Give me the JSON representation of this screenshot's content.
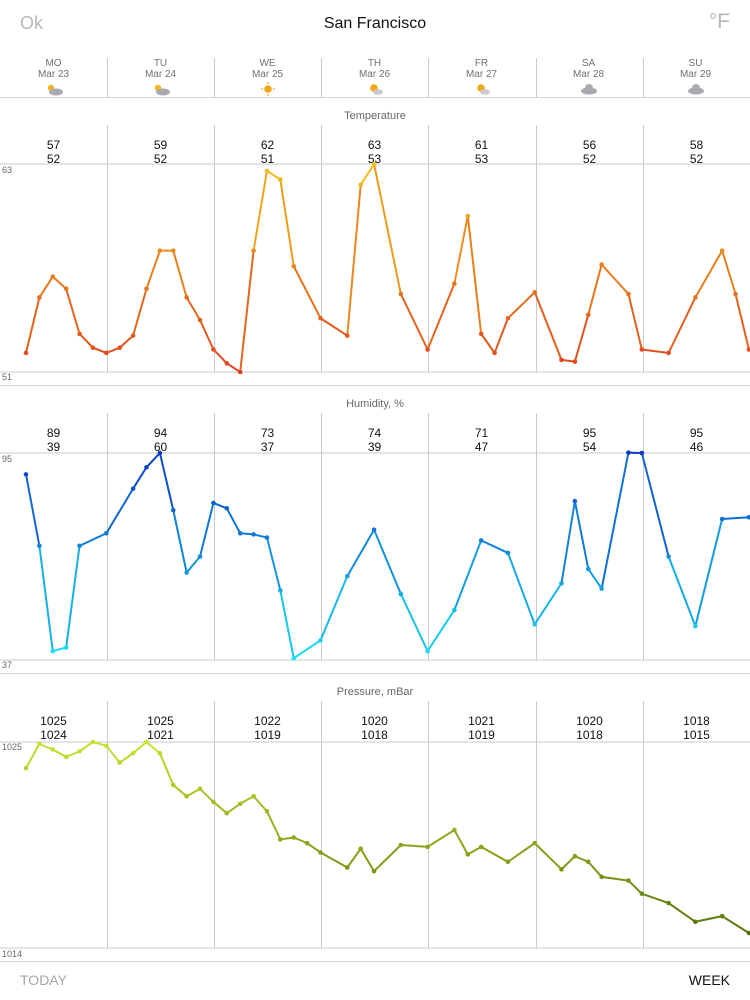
{
  "header": {
    "ok_label": "Ok",
    "city": "San Francisco",
    "unit_label": "°F"
  },
  "days": [
    {
      "name": "MO",
      "date": "Mar 23",
      "icon": "cloud-sun-icon"
    },
    {
      "name": "TU",
      "date": "Mar 24",
      "icon": "cloud-sun-icon"
    },
    {
      "name": "WE",
      "date": "Mar 25",
      "icon": "sun-icon"
    },
    {
      "name": "TH",
      "date": "Mar 26",
      "icon": "sun-cloud-icon"
    },
    {
      "name": "FR",
      "date": "Mar 27",
      "icon": "sun-cloud-icon"
    },
    {
      "name": "SA",
      "date": "Mar 28",
      "icon": "cloud-icon"
    },
    {
      "name": "SU",
      "date": "Mar 29",
      "icon": "cloud-icon"
    }
  ],
  "footer": {
    "today_label": "TODAY",
    "week_label": "WEEK"
  },
  "chart_data": [
    {
      "type": "line",
      "title": "Temperature",
      "ylim": [
        51,
        63
      ],
      "y_max_label": "63",
      "y_min_label": "51",
      "daily": [
        {
          "max": "57",
          "min": "52"
        },
        {
          "max": "59",
          "min": "52"
        },
        {
          "max": "62",
          "min": "51"
        },
        {
          "max": "63",
          "min": "53"
        },
        {
          "max": "61",
          "min": "53"
        },
        {
          "max": "56",
          "min": "52"
        },
        {
          "max": "58",
          "min": "52"
        }
      ],
      "x": [
        0,
        0.125,
        0.25,
        0.375,
        0.5,
        0.625,
        0.75,
        0.875,
        1,
        1.125,
        1.25,
        1.375,
        1.5,
        1.625,
        1.75,
        1.875,
        2,
        2.125,
        2.25,
        2.375,
        2.5,
        2.75,
        3,
        3.125,
        3.25,
        3.5,
        3.75,
        4,
        4.125,
        4.25,
        4.375,
        4.5,
        4.75,
        5,
        5.125,
        5.25,
        5.375,
        5.625,
        5.75,
        6,
        6.25,
        6.5,
        6.625,
        6.75,
        6.875,
        7
      ],
      "values": [
        52.1,
        55.3,
        56.5,
        55.8,
        53.2,
        52.4,
        52.1,
        52.4,
        53.1,
        55.8,
        58,
        58,
        55.3,
        54,
        52.3,
        51.5,
        51,
        58,
        62.6,
        62.1,
        57.1,
        54.1,
        53.1,
        61.8,
        63,
        55.5,
        52.3,
        56.1,
        60,
        53.2,
        52.1,
        54.1,
        55.6,
        51.7,
        51.6,
        54.3,
        57.2,
        55.5,
        52.3,
        52.1,
        55.3,
        58,
        55.5,
        52.3,
        52.1,
        51.9
      ]
    },
    {
      "type": "line",
      "title": "Humidity, %",
      "ylim": [
        37,
        95
      ],
      "y_max_label": "95",
      "y_min_label": "37",
      "daily": [
        {
          "max": "89",
          "min": "39"
        },
        {
          "max": "94",
          "min": "60"
        },
        {
          "max": "73",
          "min": "37"
        },
        {
          "max": "74",
          "min": "39"
        },
        {
          "max": "71",
          "min": "47"
        },
        {
          "max": "95",
          "min": "54"
        },
        {
          "max": "95",
          "min": "46"
        }
      ],
      "x": [
        0,
        0.125,
        0.25,
        0.375,
        0.5,
        0.75,
        1,
        1.125,
        1.25,
        1.375,
        1.5,
        1.625,
        1.75,
        1.875,
        2,
        2.125,
        2.25,
        2.375,
        2.5,
        2.75,
        3,
        3.25,
        3.5,
        3.75,
        4,
        4.25,
        4.5,
        4.75,
        5,
        5.125,
        5.25,
        5.375,
        5.625,
        5.75,
        6,
        6.25,
        6.5,
        6.75,
        7
      ],
      "values": [
        89,
        69,
        39.5,
        40.5,
        69,
        72.5,
        85,
        91,
        95,
        79,
        61.5,
        66,
        81,
        79.5,
        72.5,
        72.2,
        71.3,
        56.5,
        37.5,
        42.5,
        60.5,
        73.5,
        55.5,
        39.5,
        51,
        70.5,
        67,
        47,
        58.5,
        81.5,
        62.5,
        57,
        95.1,
        95,
        66,
        46.5,
        76.5,
        77,
        76.8
      ]
    },
    {
      "type": "line",
      "title": "Pressure, mBar",
      "ylim": [
        1014,
        1025
      ],
      "y_max_label": "1025",
      "y_min_label": "1014",
      "daily": [
        {
          "max": "1025",
          "min": "1024"
        },
        {
          "max": "1025",
          "min": "1021"
        },
        {
          "max": "1022",
          "min": "1019"
        },
        {
          "max": "1020",
          "min": "1018"
        },
        {
          "max": "1021",
          "min": "1019"
        },
        {
          "max": "1020",
          "min": "1018"
        },
        {
          "max": "1018",
          "min": "1015"
        }
      ],
      "x": [
        0,
        0.125,
        0.25,
        0.375,
        0.5,
        0.625,
        0.75,
        0.875,
        1,
        1.125,
        1.25,
        1.375,
        1.5,
        1.625,
        1.75,
        1.875,
        2,
        2.125,
        2.25,
        2.375,
        2.5,
        2.625,
        2.75,
        3,
        3.125,
        3.25,
        3.5,
        3.75,
        4,
        4.125,
        4.25,
        4.5,
        4.75,
        5,
        5.125,
        5.25,
        5.375,
        5.625,
        5.75,
        6,
        6.25,
        6.5,
        6.75,
        7
      ],
      "values": [
        1023.6,
        1024.9,
        1024.6,
        1024.2,
        1024.5,
        1025,
        1024.8,
        1023.9,
        1024.4,
        1025,
        1024.4,
        1022.7,
        1022.1,
        1022.5,
        1021.8,
        1021.2,
        1021.7,
        1022.1,
        1021.3,
        1019.8,
        1019.9,
        1019.6,
        1019.1,
        1018.3,
        1019.3,
        1018.1,
        1019.5,
        1019.4,
        1020.3,
        1019,
        1019.4,
        1018.6,
        1019.6,
        1018.2,
        1018.9,
        1018.6,
        1017.8,
        1017.6,
        1016.9,
        1016.4,
        1015.4,
        1015.7,
        1014.8,
        1014.4
      ]
    }
  ],
  "colors": {
    "separator": "#d4d4d8",
    "grid": "#c9c9d0",
    "muted_text": "#6f6f75",
    "temp_hot": "#f2c21b",
    "temp_cold": "#e0421f",
    "humidity_high": "#0b39c4",
    "humidity_low": "#19e3f2",
    "pressure_high": "#c8e22f",
    "pressure_low": "#4d6a07"
  }
}
